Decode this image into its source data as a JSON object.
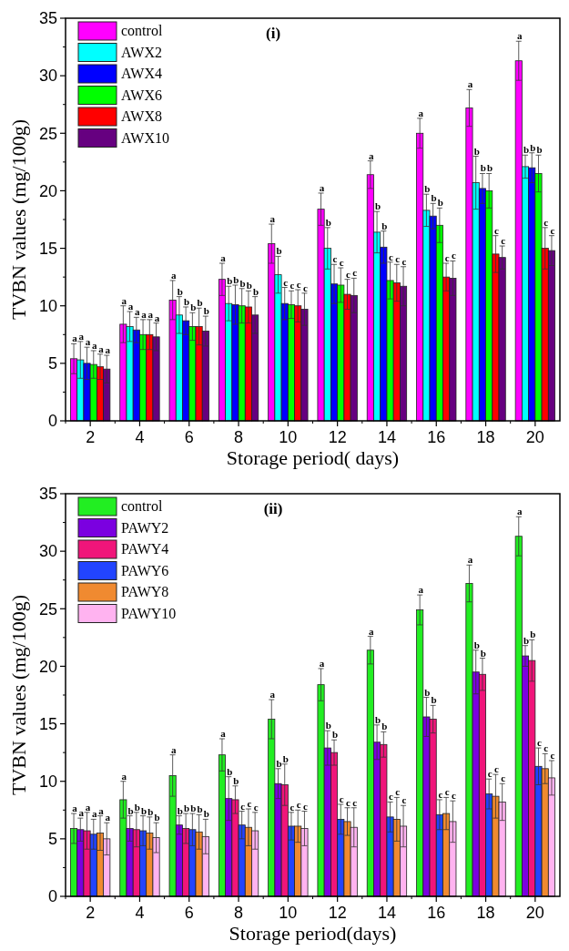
{
  "chart_data": [
    {
      "type": "bar",
      "title": "(i)",
      "xlabel": "Storage period( days)",
      "ylabel": "TVBN values (mg/100g)",
      "categories": [
        "2",
        "4",
        "6",
        "8",
        "10",
        "12",
        "14",
        "16",
        "18",
        "20"
      ],
      "ylim": [
        0,
        35
      ],
      "yticks": [
        0,
        5,
        10,
        15,
        20,
        25,
        30,
        35
      ],
      "grid": false,
      "legend": "top left",
      "series": [
        {
          "name": "control",
          "color": "#ff00ff",
          "values": [
            5.4,
            8.4,
            10.5,
            12.3,
            15.4,
            18.4,
            21.4,
            25.0,
            27.2,
            31.3
          ],
          "errors": [
            1.3,
            1.6,
            1.7,
            1.4,
            1.7,
            1.4,
            1.2,
            1.3,
            1.6,
            1.7
          ],
          "value_labels": [
            "a",
            "a",
            "a",
            "a",
            "a",
            "a",
            "a",
            "a",
            "a",
            "a"
          ]
        },
        {
          "name": "AWX2",
          "color": "#00ffff",
          "values": [
            5.3,
            8.2,
            9.2,
            10.2,
            12.7,
            15.0,
            16.4,
            18.3,
            20.7,
            22.1
          ],
          "errors": [
            1.6,
            1.3,
            1.6,
            1.5,
            1.6,
            1.8,
            1.8,
            1.4,
            2.3,
            1.0
          ],
          "value_labels": [
            "a",
            "a",
            "b",
            "b",
            "b",
            "b",
            "b",
            "b",
            "b",
            "b"
          ]
        },
        {
          "name": "AWX4",
          "color": "#0000ff",
          "values": [
            5.0,
            7.9,
            8.7,
            10.1,
            10.2,
            11.9,
            15.1,
            17.8,
            20.2,
            22.0
          ],
          "errors": [
            1.4,
            1.1,
            1.2,
            1.7,
            1.4,
            1.7,
            1.4,
            1.1,
            1.3,
            1.3
          ],
          "value_labels": [
            "a",
            "a",
            "b",
            "b",
            "c",
            "c",
            "b",
            "b",
            "b",
            "b"
          ]
        },
        {
          "name": "AWX6",
          "color": "#00ff00",
          "values": [
            4.9,
            7.5,
            8.2,
            10.0,
            10.1,
            11.8,
            12.2,
            17.0,
            20.0,
            21.5
          ],
          "errors": [
            1.2,
            1.3,
            1.2,
            1.5,
            1.2,
            1.5,
            1.6,
            1.5,
            1.5,
            1.6
          ],
          "value_labels": [
            "a",
            "a",
            "b",
            "b",
            "c",
            "c",
            "c",
            "b",
            "b",
            "b"
          ]
        },
        {
          "name": "AWX8",
          "color": "#ff0000",
          "values": [
            4.7,
            7.5,
            8.2,
            9.9,
            10.0,
            11.0,
            12.0,
            12.5,
            14.5,
            15.0
          ],
          "errors": [
            1.1,
            1.3,
            1.6,
            1.4,
            1.4,
            1.3,
            1.6,
            1.2,
            1.6,
            1.8
          ],
          "value_labels": [
            "a",
            "a",
            "b",
            "b",
            "c",
            "c",
            "c",
            "c",
            "c",
            "c"
          ]
        },
        {
          "name": "AWX10",
          "color": "#660080",
          "values": [
            4.5,
            7.3,
            7.8,
            9.2,
            9.7,
            10.9,
            11.7,
            12.4,
            14.2,
            14.8
          ],
          "errors": [
            1.2,
            1.2,
            1.3,
            1.6,
            1.4,
            1.5,
            1.7,
            1.5,
            1.0,
            1.3
          ],
          "value_labels": [
            "a",
            "a",
            "b",
            "b",
            "c",
            "c",
            "c",
            "c",
            "c",
            "c"
          ]
        }
      ]
    },
    {
      "type": "bar",
      "title": "(ii)",
      "xlabel": "Storage period(days)",
      "ylabel": "TVBN values (mg/100g)",
      "categories": [
        "2",
        "4",
        "6",
        "8",
        "10",
        "12",
        "14",
        "16",
        "18",
        "20"
      ],
      "ylim": [
        0,
        35
      ],
      "yticks": [
        0,
        5,
        10,
        15,
        20,
        25,
        30,
        35
      ],
      "grid": false,
      "legend": "top left",
      "series": [
        {
          "name": "control",
          "color": "#22ee22",
          "values": [
            5.9,
            8.4,
            10.5,
            12.3,
            15.4,
            18.4,
            21.4,
            24.9,
            27.2,
            31.3
          ],
          "errors": [
            1.3,
            1.6,
            1.8,
            1.4,
            1.7,
            1.4,
            1.2,
            1.3,
            1.6,
            1.7
          ],
          "value_labels": [
            "a",
            "a",
            "a",
            "a",
            "a",
            "a",
            "a",
            "a",
            "a",
            "a"
          ]
        },
        {
          "name": "PAWY2",
          "color": "#7b00e0",
          "values": [
            5.8,
            5.9,
            6.2,
            8.5,
            9.8,
            12.9,
            13.4,
            15.6,
            19.5,
            20.9
          ],
          "errors": [
            1.0,
            1.1,
            0.8,
            1.9,
            1.3,
            1.5,
            1.5,
            1.7,
            1.9,
            0.9
          ],
          "value_labels": [
            "a",
            "b",
            "b",
            "b",
            "b",
            "b",
            "b",
            "b",
            "b",
            "b"
          ]
        },
        {
          "name": "PAWY4",
          "color": "#f0157a",
          "values": [
            5.7,
            5.8,
            5.9,
            8.4,
            9.7,
            12.5,
            13.2,
            15.4,
            19.3,
            20.5
          ],
          "errors": [
            1.6,
            1.5,
            1.3,
            1.2,
            1.8,
            1.1,
            1.1,
            1.2,
            1.4,
            1.8
          ],
          "value_labels": [
            "a",
            "b",
            "b",
            "b",
            "b",
            "b",
            "b",
            "b",
            "b",
            "b"
          ]
        },
        {
          "name": "PAWY6",
          "color": "#2244ff",
          "values": [
            5.4,
            5.7,
            5.8,
            6.2,
            6.1,
            6.7,
            6.9,
            7.1,
            8.9,
            11.3
          ],
          "errors": [
            1.3,
            1.3,
            1.4,
            1.2,
            1.2,
            1.3,
            1.3,
            1.3,
            1.3,
            1.6
          ],
          "value_labels": [
            "a",
            "b",
            "b",
            "c",
            "c",
            "c",
            "c",
            "c",
            "c",
            "c"
          ]
        },
        {
          "name": "PAWY8",
          "color": "#f08a30",
          "values": [
            5.5,
            5.5,
            5.6,
            6.0,
            6.1,
            6.5,
            6.7,
            7.2,
            8.7,
            11.1
          ],
          "errors": [
            1.5,
            1.4,
            1.5,
            1.6,
            1.4,
            1.2,
            1.9,
            1.4,
            1.9,
            1.3
          ],
          "value_labels": [
            "a",
            "b",
            "b",
            "c",
            "c",
            "c",
            "c",
            "c",
            "c",
            "c"
          ]
        },
        {
          "name": "PAWY10",
          "color": "#ffb3f0",
          "values": [
            5.0,
            5.1,
            5.2,
            5.7,
            5.9,
            6.0,
            6.1,
            6.5,
            8.2,
            10.3
          ],
          "errors": [
            1.4,
            1.3,
            1.5,
            1.6,
            1.5,
            1.7,
            1.8,
            1.8,
            1.6,
            1.5
          ],
          "value_labels": [
            "a",
            "b",
            "b",
            "c",
            "c",
            "c",
            "c",
            "c",
            "c",
            "c"
          ]
        }
      ]
    }
  ]
}
